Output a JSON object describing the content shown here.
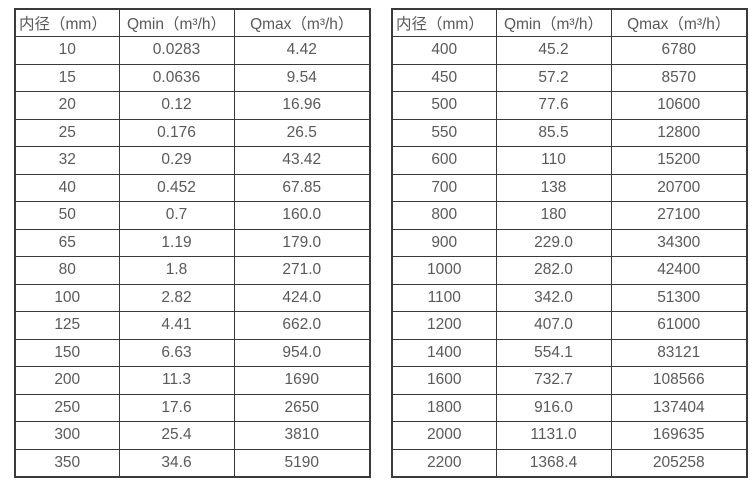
{
  "page": {
    "background": "#ffffff"
  },
  "colors": {
    "border": "#3a3a3a",
    "text": "#595959",
    "background": "#ffffff"
  },
  "tables": [
    {
      "name": "flow-spec-table-left",
      "headers": [
        "内径（mm）",
        "Qmin（m³/h）",
        "Qmax（m³/h）"
      ],
      "rows": [
        [
          "10",
          "0.0283",
          "4.42"
        ],
        [
          "15",
          "0.0636",
          "9.54"
        ],
        [
          "20",
          "0.12",
          "16.96"
        ],
        [
          "25",
          "0.176",
          "26.5"
        ],
        [
          "32",
          "0.29",
          "43.42"
        ],
        [
          "40",
          "0.452",
          "67.85"
        ],
        [
          "50",
          "0.7",
          "160.0"
        ],
        [
          "65",
          "1.19",
          "179.0"
        ],
        [
          "80",
          "1.8",
          "271.0"
        ],
        [
          "100",
          "2.82",
          "424.0"
        ],
        [
          "125",
          "4.41",
          "662.0"
        ],
        [
          "150",
          "6.63",
          "954.0"
        ],
        [
          "200",
          "11.3",
          "1690"
        ],
        [
          "250",
          "17.6",
          "2650"
        ],
        [
          "300",
          "25.4",
          "3810"
        ],
        [
          "350",
          "34.6",
          "5190"
        ]
      ]
    },
    {
      "name": "flow-spec-table-right",
      "headers": [
        "内径（mm）",
        "Qmin（m³/h）",
        "Qmax（m³/h）"
      ],
      "rows": [
        [
          "400",
          "45.2",
          "6780"
        ],
        [
          "450",
          "57.2",
          "8570"
        ],
        [
          "500",
          "77.6",
          "10600"
        ],
        [
          "550",
          "85.5",
          "12800"
        ],
        [
          "600",
          "110",
          "15200"
        ],
        [
          "700",
          "138",
          "20700"
        ],
        [
          "800",
          "180",
          "27100"
        ],
        [
          "900",
          "229.0",
          "34300"
        ],
        [
          "1000",
          "282.0",
          "42400"
        ],
        [
          "1100",
          "342.0",
          "51300"
        ],
        [
          "1200",
          "407.0",
          "61000"
        ],
        [
          "1400",
          "554.1",
          "83121"
        ],
        [
          "1600",
          "732.7",
          "108566"
        ],
        [
          "1800",
          "916.0",
          "137404"
        ],
        [
          "2000",
          "1131.0",
          "169635"
        ],
        [
          "2200",
          "1368.4",
          "205258"
        ]
      ]
    }
  ]
}
